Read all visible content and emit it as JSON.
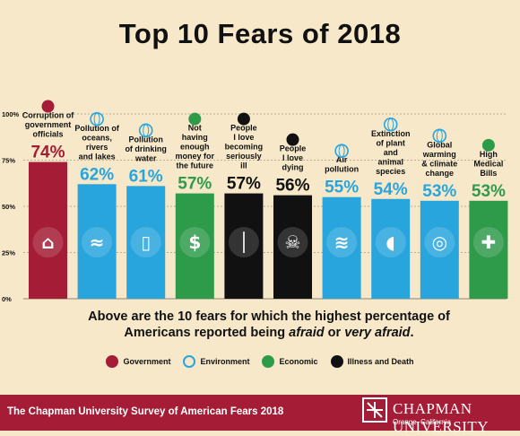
{
  "title": "Top 10 Fears of 2018",
  "footnote_parts": [
    "Above are the 10 fears for which the highest percentage of Americans reported being ",
    "afraid",
    " or ",
    "very afraid",
    "."
  ],
  "legend": [
    {
      "label": "Government",
      "color": "#a41c35",
      "icon": "column-icon"
    },
    {
      "label": "Environment",
      "color": "#29a5dd",
      "icon": "globe-icon"
    },
    {
      "label": "Economic",
      "color": "#2e9b4a",
      "icon": "money-icon"
    },
    {
      "label": "Illness and Death",
      "color": "#111111",
      "icon": "skull-icon"
    }
  ],
  "footer": {
    "survey": "The Chapman University Survey of American Fears 2018",
    "university": "CHAPMAN UNIVERSITY",
    "location": "Orange, California"
  },
  "chart_data": {
    "type": "bar",
    "title": "Top 10 Fears of 2018",
    "ylim": [
      0,
      100
    ],
    "yticks": [
      "0%",
      "25%",
      "50%",
      "75%",
      "100%"
    ],
    "grid": true,
    "categories": [
      "Corruption of government officials",
      "Pollution of oceans, rivers and lakes",
      "Pollution of drinking water",
      "Not having enough money for the future",
      "People I love becoming seriously ill",
      "People I love dying",
      "Air pollution",
      "Extinction of plant and animal species",
      "Global warming & climate change",
      "High Medical Bills"
    ],
    "label_lines": [
      [
        "Corruption of",
        "government",
        "officials"
      ],
      [
        "Pollution of",
        "oceans,",
        "rivers",
        "and lakes"
      ],
      [
        "Pollution",
        "of drinking",
        "water"
      ],
      [
        "Not",
        "having",
        "enough",
        "money for",
        "the future"
      ],
      [
        "People",
        "I love",
        "becoming",
        "seriously",
        "ill"
      ],
      [
        "People",
        "I love",
        "dying"
      ],
      [
        "Air",
        "pollution"
      ],
      [
        "Extinction",
        "of plant",
        "and",
        "animal",
        "species"
      ],
      [
        "Global",
        "warming",
        "& climate",
        "change"
      ],
      [
        "High",
        "Medical",
        "Bills"
      ]
    ],
    "values": [
      74,
      62,
      61,
      57,
      57,
      56,
      55,
      54,
      53,
      53
    ],
    "value_labels": [
      "74%",
      "62%",
      "61%",
      "57%",
      "57%",
      "56%",
      "55%",
      "54%",
      "53%",
      "53%"
    ],
    "category_type": [
      "Government",
      "Environment",
      "Environment",
      "Economic",
      "Illness and Death",
      "Illness and Death",
      "Environment",
      "Environment",
      "Environment",
      "Economic"
    ],
    "bar_icons": [
      "column-icon",
      "water-icon",
      "water-glass-icon",
      "dollar-icon",
      "thermometer-icon",
      "skull-crossbones-icon",
      "wind-icon",
      "elephant-icon",
      "globe-icon",
      "medical-cross-icon"
    ]
  }
}
